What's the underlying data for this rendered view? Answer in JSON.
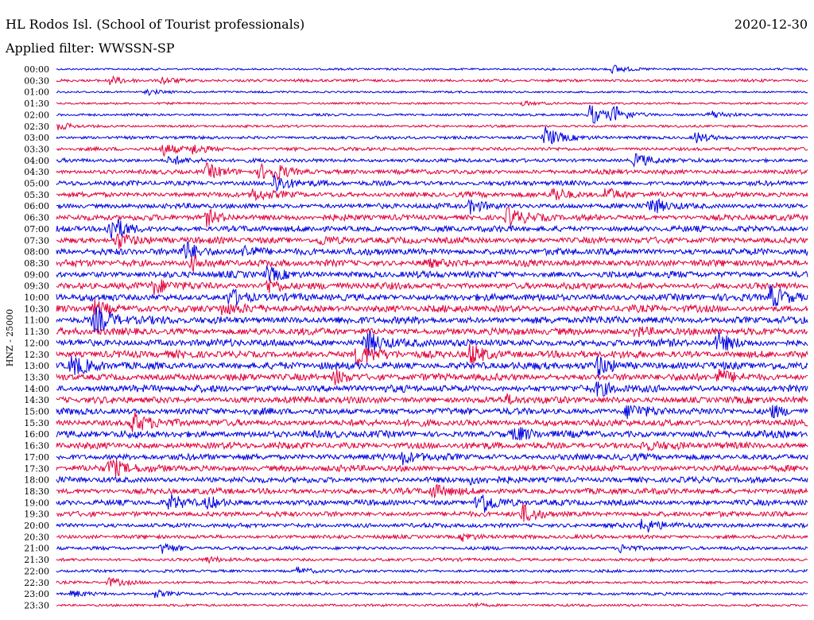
{
  "header": {
    "station": "HL Rodos Isl. (School of Tourist professionals)",
    "date": "2020-12-30",
    "filter": "Applied filter: WWSSN-SP"
  },
  "chart_data": {
    "type": "line",
    "title": "HL Rodos Isl. (School of Tourist professionals)",
    "subtitle": "Applied filter: WWSSN-SP",
    "date": "2020-12-30",
    "ylabel": "HNZ - 25000",
    "xlabel": "",
    "legend": "none",
    "grid": false,
    "colors": [
      "#0000e0",
      "#e0003c"
    ],
    "rows": [
      {
        "time": "00:00",
        "activity": 0.15,
        "events": [
          {
            "t": 0.74,
            "a": 0.6
          }
        ]
      },
      {
        "time": "00:30",
        "activity": 0.25,
        "events": [
          {
            "t": 0.07,
            "a": 0.6
          },
          {
            "t": 0.14,
            "a": 0.5
          }
        ]
      },
      {
        "time": "01:00",
        "activity": 0.15,
        "events": [
          {
            "t": 0.12,
            "a": 0.4
          }
        ]
      },
      {
        "time": "01:30",
        "activity": 0.15,
        "events": [
          {
            "t": 0.62,
            "a": 0.3
          }
        ]
      },
      {
        "time": "02:00",
        "activity": 0.2,
        "events": [
          {
            "t": 0.71,
            "a": 1.5
          },
          {
            "t": 0.74,
            "a": 1.2
          },
          {
            "t": 0.87,
            "a": 0.6
          }
        ]
      },
      {
        "time": "02:30",
        "activity": 0.2,
        "events": [
          {
            "t": 0.0,
            "a": 0.6
          }
        ]
      },
      {
        "time": "03:00",
        "activity": 0.3,
        "events": [
          {
            "t": 0.65,
            "a": 1.6
          },
          {
            "t": 0.85,
            "a": 0.8
          }
        ]
      },
      {
        "time": "03:30",
        "activity": 0.35,
        "events": [
          {
            "t": 0.14,
            "a": 0.9
          },
          {
            "t": 0.18,
            "a": 0.7
          }
        ]
      },
      {
        "time": "04:00",
        "activity": 0.4,
        "events": [
          {
            "t": 0.15,
            "a": 0.7
          },
          {
            "t": 0.77,
            "a": 1.0
          }
        ]
      },
      {
        "time": "04:30",
        "activity": 0.5,
        "events": [
          {
            "t": 0.2,
            "a": 1.0
          },
          {
            "t": 0.27,
            "a": 1.1
          },
          {
            "t": 0.29,
            "a": 0.9
          }
        ]
      },
      {
        "time": "05:00",
        "activity": 0.55,
        "events": [
          {
            "t": 0.29,
            "a": 1.4
          }
        ]
      },
      {
        "time": "05:30",
        "activity": 0.6,
        "events": [
          {
            "t": 0.26,
            "a": 0.9
          },
          {
            "t": 0.66,
            "a": 1.1
          },
          {
            "t": 0.73,
            "a": 1.0
          }
        ]
      },
      {
        "time": "06:00",
        "activity": 0.6,
        "events": [
          {
            "t": 0.55,
            "a": 1.0
          },
          {
            "t": 0.79,
            "a": 1.3
          }
        ]
      },
      {
        "time": "06:30",
        "activity": 0.7,
        "events": [
          {
            "t": 0.2,
            "a": 1.0
          },
          {
            "t": 0.6,
            "a": 1.4
          }
        ]
      },
      {
        "time": "07:00",
        "activity": 0.7,
        "events": [
          {
            "t": 0.07,
            "a": 2.0
          }
        ]
      },
      {
        "time": "07:30",
        "activity": 0.75,
        "events": [
          {
            "t": 0.08,
            "a": 1.2
          },
          {
            "t": 0.35,
            "a": 0.7
          }
        ]
      },
      {
        "time": "08:00",
        "activity": 0.8,
        "events": [
          {
            "t": 0.17,
            "a": 1.4
          },
          {
            "t": 0.25,
            "a": 1.0
          }
        ]
      },
      {
        "time": "08:30",
        "activity": 0.8,
        "events": [
          {
            "t": 0.18,
            "a": 1.0
          },
          {
            "t": 0.49,
            "a": 0.6
          }
        ]
      },
      {
        "time": "09:00",
        "activity": 0.8,
        "events": [
          {
            "t": 0.28,
            "a": 1.0
          }
        ]
      },
      {
        "time": "09:30",
        "activity": 0.8,
        "events": [
          {
            "t": 0.13,
            "a": 1.1
          },
          {
            "t": 0.28,
            "a": 1.1
          }
        ]
      },
      {
        "time": "10:00",
        "activity": 0.85,
        "events": [
          {
            "t": 0.23,
            "a": 1.2
          },
          {
            "t": 0.95,
            "a": 1.6
          }
        ]
      },
      {
        "time": "10:30",
        "activity": 0.85,
        "events": [
          {
            "t": 0.05,
            "a": 1.1
          },
          {
            "t": 0.22,
            "a": 0.8
          }
        ]
      },
      {
        "time": "11:00",
        "activity": 0.9,
        "events": [
          {
            "t": 0.05,
            "a": 2.2
          }
        ]
      },
      {
        "time": "11:30",
        "activity": 0.85,
        "events": [
          {
            "t": 0.77,
            "a": 0.7
          }
        ]
      },
      {
        "time": "12:00",
        "activity": 0.9,
        "events": [
          {
            "t": 0.41,
            "a": 2.0
          },
          {
            "t": 0.88,
            "a": 1.2
          }
        ]
      },
      {
        "time": "12:30",
        "activity": 0.9,
        "events": [
          {
            "t": 0.4,
            "a": 1.6
          },
          {
            "t": 0.55,
            "a": 1.6
          }
        ]
      },
      {
        "time": "13:00",
        "activity": 0.9,
        "events": [
          {
            "t": 0.02,
            "a": 1.3
          },
          {
            "t": 0.72,
            "a": 1.4
          }
        ]
      },
      {
        "time": "13:30",
        "activity": 0.85,
        "events": [
          {
            "t": 0.37,
            "a": 1.0
          },
          {
            "t": 0.88,
            "a": 1.1
          }
        ]
      },
      {
        "time": "14:00",
        "activity": 0.85,
        "events": [
          {
            "t": 0.72,
            "a": 0.9
          }
        ]
      },
      {
        "time": "14:30",
        "activity": 0.8,
        "events": [
          {
            "t": 0.6,
            "a": 0.5
          }
        ]
      },
      {
        "time": "15:00",
        "activity": 0.8,
        "events": [
          {
            "t": 0.76,
            "a": 1.1
          },
          {
            "t": 0.95,
            "a": 0.9
          }
        ]
      },
      {
        "time": "15:30",
        "activity": 0.8,
        "events": [
          {
            "t": 0.1,
            "a": 1.6
          }
        ]
      },
      {
        "time": "16:00",
        "activity": 0.85,
        "events": [
          {
            "t": 0.61,
            "a": 0.9
          }
        ]
      },
      {
        "time": "16:30",
        "activity": 0.8,
        "events": [
          {
            "t": 0.78,
            "a": 0.6
          }
        ]
      },
      {
        "time": "17:00",
        "activity": 0.75,
        "events": [
          {
            "t": 0.46,
            "a": 0.9
          }
        ]
      },
      {
        "time": "17:30",
        "activity": 0.75,
        "events": [
          {
            "t": 0.07,
            "a": 1.5
          }
        ]
      },
      {
        "time": "18:00",
        "activity": 0.7,
        "events": [
          {
            "t": 0.55,
            "a": 0.5
          }
        ]
      },
      {
        "time": "18:30",
        "activity": 0.7,
        "events": [
          {
            "t": 0.5,
            "a": 1.0
          }
        ]
      },
      {
        "time": "19:00",
        "activity": 0.65,
        "events": [
          {
            "t": 0.15,
            "a": 1.0
          },
          {
            "t": 0.2,
            "a": 0.9
          },
          {
            "t": 0.56,
            "a": 2.2
          }
        ]
      },
      {
        "time": "19:30",
        "activity": 0.6,
        "events": [
          {
            "t": 0.62,
            "a": 1.2
          }
        ]
      },
      {
        "time": "20:00",
        "activity": 0.5,
        "events": [
          {
            "t": 0.78,
            "a": 1.2
          }
        ]
      },
      {
        "time": "20:30",
        "activity": 0.4,
        "events": [
          {
            "t": 0.54,
            "a": 0.6
          }
        ]
      },
      {
        "time": "21:00",
        "activity": 0.35,
        "events": [
          {
            "t": 0.14,
            "a": 0.8
          },
          {
            "t": 0.75,
            "a": 0.6
          }
        ]
      },
      {
        "time": "21:30",
        "activity": 0.3,
        "events": [
          {
            "t": 0.2,
            "a": 0.4
          }
        ]
      },
      {
        "time": "22:00",
        "activity": 0.25,
        "events": [
          {
            "t": 0.32,
            "a": 0.5
          }
        ]
      },
      {
        "time": "22:30",
        "activity": 0.25,
        "events": [
          {
            "t": 0.07,
            "a": 0.6
          }
        ]
      },
      {
        "time": "23:00",
        "activity": 0.25,
        "events": [
          {
            "t": 0.02,
            "a": 0.5
          },
          {
            "t": 0.13,
            "a": 0.5
          }
        ]
      },
      {
        "time": "23:30",
        "activity": 0.2,
        "events": [
          {
            "t": 0.55,
            "a": 0.3
          }
        ]
      }
    ]
  }
}
